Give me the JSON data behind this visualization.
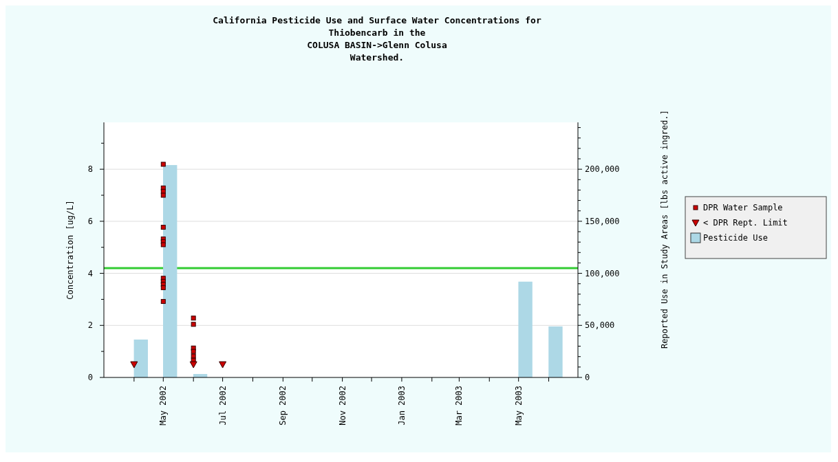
{
  "chart_data": {
    "type": "bar",
    "title": "California Pesticide Use and Surface Water Concentrations for\nThiobencarb in the\nCOLUSA BASIN->Glenn Colusa\nWatershed.",
    "ylabel": "Concentration [ug/L]",
    "y2label": "Reported Use in Study Areas [lbs active ingred.]",
    "xlim": [
      "2002-03",
      "2003-07"
    ],
    "xticks": [
      {
        "value": "2002-04",
        "label": null
      },
      {
        "value": "2002-05",
        "label": "May 2002"
      },
      {
        "value": "2002-06",
        "label": null
      },
      {
        "value": "2002-07",
        "label": "Jul 2002"
      },
      {
        "value": "2002-08",
        "label": null
      },
      {
        "value": "2002-09",
        "label": "Sep 2002"
      },
      {
        "value": "2002-10",
        "label": null
      },
      {
        "value": "2002-11",
        "label": "Nov 2002"
      },
      {
        "value": "2002-12",
        "label": null
      },
      {
        "value": "2003-01",
        "label": "Jan 2003"
      },
      {
        "value": "2003-02",
        "label": null
      },
      {
        "value": "2003-03",
        "label": "Mar 2003"
      },
      {
        "value": "2003-04",
        "label": null
      },
      {
        "value": "2003-05",
        "label": "May 2003"
      },
      {
        "value": "2003-06",
        "label": null
      }
    ],
    "ylim": [
      0,
      9.8
    ],
    "yticks": [
      0,
      {
        "value": 1,
        "label": null
      },
      2,
      {
        "value": 3,
        "label": null
      },
      4,
      {
        "value": 5,
        "label": null
      },
      6,
      {
        "value": 7,
        "label": null
      },
      8,
      {
        "value": 9,
        "label": null
      }
    ],
    "y2lim": [
      0,
      245000
    ],
    "y2ticks": [
      0,
      {
        "value": 10000,
        "label": null
      },
      {
        "value": 20000,
        "label": null
      },
      {
        "value": 30000,
        "label": null
      },
      {
        "value": 40000,
        "label": null
      },
      {
        "value": 50000,
        "label": "50,000"
      },
      {
        "value": 60000,
        "label": null
      },
      {
        "value": 70000,
        "label": null
      },
      {
        "value": 80000,
        "label": null
      },
      {
        "value": 90000,
        "label": null
      },
      {
        "value": 100000,
        "label": "100,000"
      },
      {
        "value": 110000,
        "label": null
      },
      {
        "value": 120000,
        "label": null
      },
      {
        "value": 130000,
        "label": null
      },
      {
        "value": 140000,
        "label": null
      },
      {
        "value": 150000,
        "label": "150,000"
      },
      {
        "value": 160000,
        "label": null
      },
      {
        "value": 170000,
        "label": null
      },
      {
        "value": 180000,
        "label": null
      },
      {
        "value": 190000,
        "label": null
      },
      {
        "value": 200000,
        "label": "200,000"
      },
      {
        "value": 210000,
        "label": null
      },
      {
        "value": 220000,
        "label": null
      },
      {
        "value": 230000,
        "label": null
      },
      {
        "value": 240000,
        "label": null
      }
    ],
    "grid": "y",
    "legend": "right",
    "ref_lines": [
      {
        "axis": "y",
        "value": 4.2,
        "color": "#33cc33"
      }
    ],
    "series": [
      {
        "name": "DPR Water Sample",
        "type": "scatter",
        "marker": "square",
        "color": "#cc0000",
        "x": [
          "2002-05",
          "2002-05",
          "2002-05",
          "2002-05",
          "2002-05",
          "2002-05",
          "2002-05",
          "2002-05",
          "2002-05",
          "2002-05",
          "2002-05",
          "2002-05",
          "2002-05",
          "2002-06",
          "2002-06",
          "2002-06",
          "2002-06",
          "2002-06",
          "2002-06"
        ],
        "values": [
          8.19,
          7.28,
          7.15,
          7.0,
          5.77,
          5.32,
          5.22,
          5.1,
          3.81,
          3.69,
          3.58,
          3.45,
          2.92,
          2.28,
          2.04,
          1.13,
          1.0,
          0.82,
          0.66
        ]
      },
      {
        "name": "< DPR Rept. Limit",
        "type": "scatter",
        "marker": "triangle",
        "color": "#cc0000",
        "x": [
          "2002-04",
          "2002-06",
          "2002-07"
        ],
        "values": [
          0.5,
          0.5,
          0.5
        ]
      },
      {
        "name": "Pesticide Use",
        "axis": "y2",
        "color": "#add8e6",
        "x": [
          "2002-04-08",
          "2002-05-08",
          "2002-06-08",
          "2003-05-08",
          "2003-06-08"
        ],
        "values": [
          36400,
          204000,
          3300,
          92000,
          49000
        ]
      }
    ]
  }
}
